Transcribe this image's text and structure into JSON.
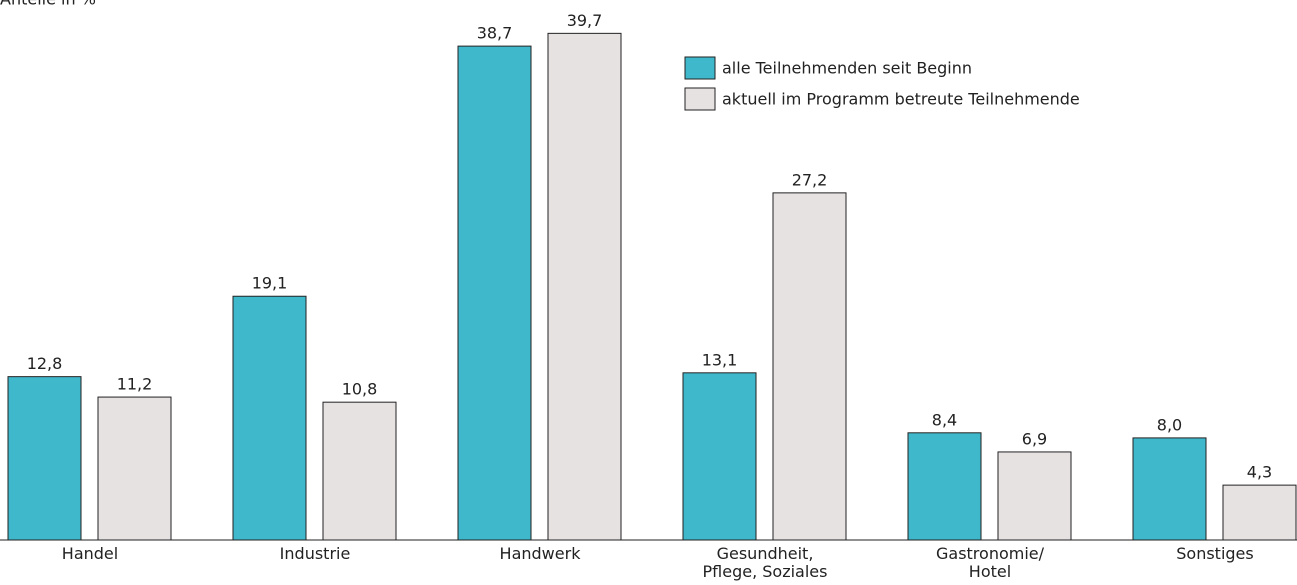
{
  "chart_data": {
    "type": "bar",
    "y_label": "Anteile in %",
    "categories": [
      "Handel",
      "Industrie",
      "Handwerk",
      "Gesundheit,\nPflege, Soziales",
      "Gastronomie/\nHotel",
      "Sonstiges"
    ],
    "series": [
      {
        "name": "alle Teilnehmenden seit Beginn",
        "color": "#40b8cc",
        "values": [
          12.8,
          19.1,
          38.7,
          13.1,
          8.4,
          8.0
        ],
        "value_labels": [
          "12,8",
          "19,1",
          "38,7",
          "13,1",
          "8,4",
          "8,0"
        ]
      },
      {
        "name": "aktuell im Programm betreute Teilnehmende",
        "color": "#e6e2e2",
        "values": [
          11.2,
          10.8,
          39.7,
          27.2,
          6.9,
          4.3
        ],
        "value_labels": [
          "11,2",
          "10,8",
          "39,7",
          "27,2",
          "6,9",
          "4,3"
        ]
      }
    ],
    "ylim": [
      0,
      42
    ],
    "legend": "upper right"
  }
}
